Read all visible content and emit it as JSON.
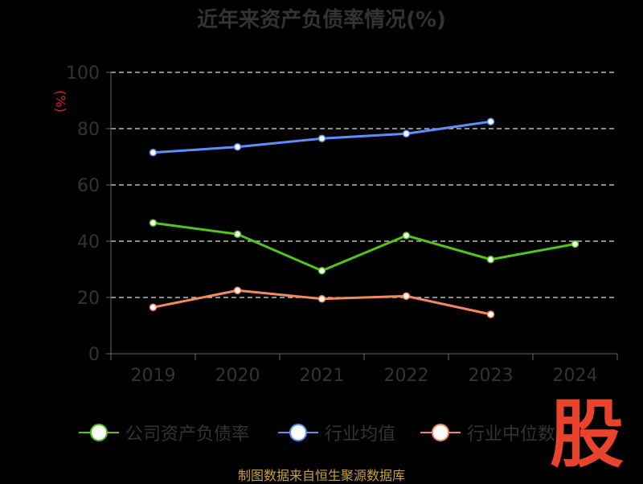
{
  "title": "近年来资产负债率情况(%)",
  "footer": "制图数据来自恒生聚源数据库",
  "watermark": "股",
  "chart_data": {
    "type": "line",
    "title": "近年来资产负债率情况(%)",
    "xlabel": "",
    "ylabel": "(%)",
    "categories": [
      "2019",
      "2020",
      "2021",
      "2022",
      "2023",
      "2024"
    ],
    "ylim": [
      0,
      100
    ],
    "yticks": [
      0,
      20,
      40,
      60,
      80,
      100
    ],
    "grid": true,
    "legend_position": "bottom",
    "series": [
      {
        "name": "公司资产负债率",
        "color": "#52c41a",
        "values": [
          46.5,
          42.5,
          29.5,
          42,
          33.5,
          39
        ]
      },
      {
        "name": "行业均值",
        "color": "#5b8ff9",
        "values": [
          71.5,
          73.5,
          76.5,
          78.2,
          82.5,
          null
        ]
      },
      {
        "name": "行业中位数",
        "color": "#f4895f",
        "values": [
          16.5,
          22.5,
          19.5,
          20.5,
          14,
          null
        ]
      }
    ]
  }
}
